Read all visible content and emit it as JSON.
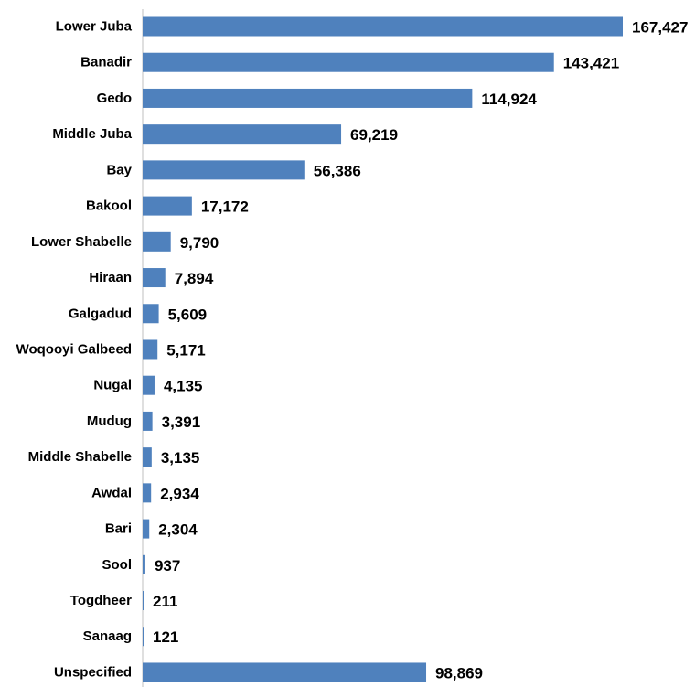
{
  "chart_data": {
    "type": "bar",
    "orientation": "horizontal",
    "title": "",
    "xlabel": "",
    "ylabel": "",
    "grid": false,
    "legend": "none",
    "bar_color": "#4F81BD",
    "xlim": [
      0,
      170000
    ],
    "categories": [
      "Lower Juba",
      "Banadir",
      "Gedo",
      "Middle Juba",
      "Bay",
      "Bakool",
      "Lower Shabelle",
      "Hiraan",
      "Galgadud",
      "Woqooyi Galbeed",
      "Nugal",
      "Mudug",
      "Middle Shabelle",
      "Awdal",
      "Bari",
      "Sool",
      "Togdheer",
      "Sanaag",
      "Unspecified"
    ],
    "values": [
      167427,
      143421,
      114924,
      69219,
      56386,
      17172,
      9790,
      7894,
      5609,
      5171,
      4135,
      3391,
      3135,
      2934,
      2304,
      937,
      211,
      121,
      98869
    ],
    "data_labels": [
      "167,427",
      "143,421",
      "114,924",
      "69,219",
      "56,386",
      "17,172",
      "9,790",
      "7,894",
      "5,609",
      "5,171",
      "4,135",
      "3,391",
      "3,135",
      "2,934",
      "2,304",
      "937",
      "211",
      "121",
      "98,869"
    ]
  }
}
